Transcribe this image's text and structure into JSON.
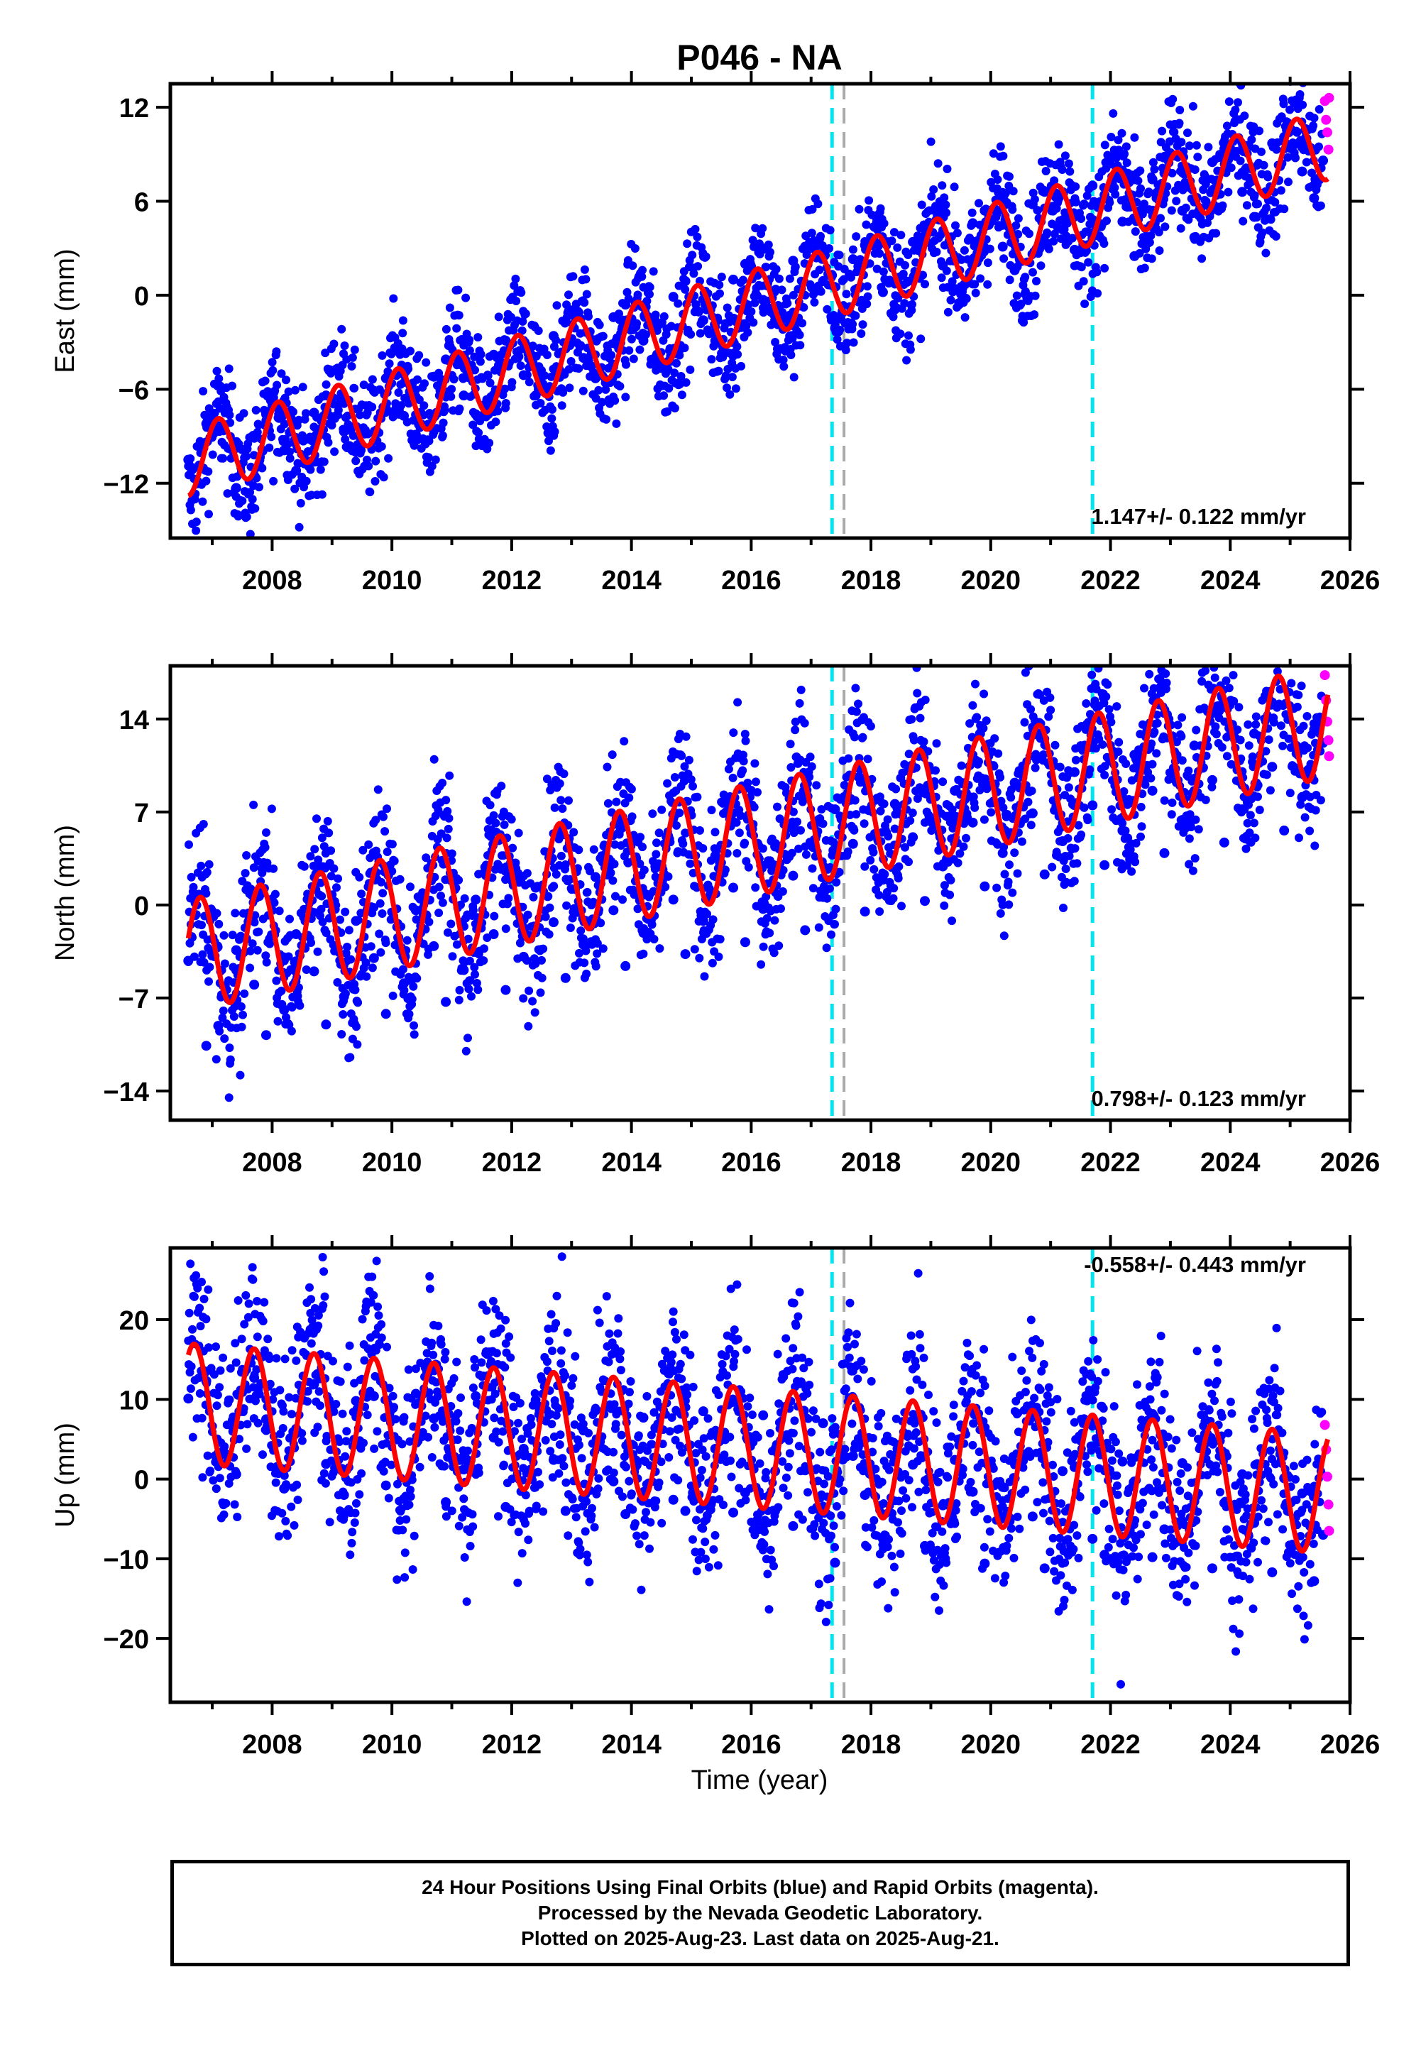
{
  "title": "P046 - NA",
  "xlabel": "Time (year)",
  "footer": {
    "line1": "24 Hour Positions Using Final Orbits (blue) and Rapid Orbits (magenta).",
    "line2": "Processed by the Nevada Geodetic Laboratory.",
    "line3": "Plotted on 2025-Aug-23. Last data on 2025-Aug-21."
  },
  "colors": {
    "final_orbits": "#0000ff",
    "rapid_orbits": "#ff00ff",
    "model_fit": "#ff0000",
    "event_cyan": "#00e5ee",
    "event_gray": "#aaaaaa"
  },
  "chart_data": [
    {
      "type": "scatter",
      "ylabel": "East (mm)",
      "rate_label": "1.147+/- 0.122 mm/yr",
      "xlim": [
        2006.3,
        2026.0
      ],
      "ylim": [
        -15.5,
        13.5
      ],
      "yticks": [
        12,
        6,
        0,
        -6,
        -12
      ],
      "xticks": [
        2008,
        2010,
        2012,
        2014,
        2016,
        2018,
        2020,
        2022,
        2024,
        2026
      ],
      "grid": false,
      "event_lines": [
        {
          "x": 2017.35,
          "style": "cyan-dashed"
        },
        {
          "x": 2017.55,
          "style": "gray-dashed"
        },
        {
          "x": 2021.7,
          "style": "cyan-dashed"
        }
      ],
      "model": {
        "start": 2006.6,
        "end": 2025.63,
        "y_start": -10.6,
        "y_end": 9.6,
        "amplitude": 2.2,
        "phase": 2006.85,
        "period": 1.0
      },
      "series": [
        {
          "name": "Final Orbits",
          "color": "#0000ff",
          "x": [
            2006.6,
            2006.9,
            2007.1,
            2007.4,
            2007.7,
            2007.9,
            2008.2,
            2008.4,
            2008.7,
            2008.9,
            2009.2,
            2009.4,
            2009.7,
            2009.9,
            2010.2,
            2010.4,
            2010.7,
            2010.9,
            2011.2,
            2011.4,
            2011.7,
            2011.9,
            2012.2,
            2012.4,
            2012.7,
            2012.9,
            2013.2,
            2013.4,
            2013.7,
            2013.9,
            2014.2,
            2014.4,
            2014.7,
            2014.9,
            2015.2,
            2015.4,
            2015.7,
            2015.9,
            2016.2,
            2016.4,
            2016.7,
            2016.9,
            2017.2,
            2017.4,
            2017.7,
            2017.9,
            2018.2,
            2018.4,
            2018.7,
            2018.9,
            2019.2,
            2019.4,
            2019.7,
            2019.9,
            2020.2,
            2020.4,
            2020.7,
            2020.9,
            2021.2,
            2021.4,
            2021.7,
            2021.9,
            2022.2,
            2022.4,
            2022.7,
            2022.9,
            2023.2,
            2023.4,
            2023.7,
            2023.9,
            2024.2,
            2024.4,
            2024.7,
            2024.9,
            2025.2,
            2025.4,
            2025.55
          ],
          "y": [
            -10.5,
            -8.2,
            -8.6,
            -12.3,
            -9.1,
            -7.6,
            -9.9,
            -11.2,
            -7.5,
            -6.4,
            -8.7,
            -10.0,
            -6.1,
            -5.3,
            -7.7,
            -8.9,
            -5.2,
            -4.1,
            -6.4,
            -7.6,
            -3.8,
            -2.9,
            -5.1,
            -6.4,
            -2.6,
            -1.7,
            -4.0,
            -5.3,
            -1.4,
            -0.6,
            -2.9,
            -4.2,
            -0.1,
            0.9,
            -1.6,
            -2.9,
            1.0,
            2.0,
            -0.3,
            -1.6,
            2.2,
            3.1,
            0.9,
            -2.1,
            2.3,
            3.2,
            0.2,
            -0.9,
            3.4,
            4.3,
            1.9,
            0.4,
            4.6,
            5.4,
            3.1,
            1.6,
            5.8,
            6.6,
            4.2,
            2.9,
            7.0,
            6.4,
            4.7,
            2.5,
            7.4,
            7.8,
            5.4,
            3.7,
            8.5,
            9.0,
            6.6,
            5.0,
            9.7,
            10.1,
            7.9,
            6.2,
            8.6
          ]
        },
        {
          "name": "Rapid Orbits",
          "color": "#ff00ff",
          "x": [
            2025.58,
            2025.6,
            2025.62,
            2025.64,
            2025.65
          ],
          "y": [
            12.4,
            11.2,
            10.4,
            9.3,
            12.6
          ]
        }
      ]
    },
    {
      "type": "scatter",
      "ylabel": "North (mm)",
      "rate_label": "0.798+/- 0.123 mm/yr",
      "xlim": [
        2006.3,
        2026.0
      ],
      "ylim": [
        -16.2,
        18.0
      ],
      "yticks": [
        14,
        7,
        0,
        -7,
        -14
      ],
      "xticks": [
        2008,
        2010,
        2012,
        2014,
        2016,
        2018,
        2020,
        2022,
        2024,
        2026
      ],
      "grid": false,
      "event_lines": [
        {
          "x": 2017.35,
          "style": "cyan-dashed"
        },
        {
          "x": 2017.55,
          "style": "gray-dashed"
        },
        {
          "x": 2021.7,
          "style": "cyan-dashed"
        }
      ],
      "model": {
        "start": 2006.6,
        "end": 2025.63,
        "y_start": -3.8,
        "y_end": 13.8,
        "amplitude": 4.2,
        "phase": 2006.55,
        "period": 1.0
      },
      "series": [
        {
          "name": "Final Orbits",
          "color": "#0000ff",
          "x": [
            2006.6,
            2006.9,
            2007.1,
            2007.4,
            2007.7,
            2007.9,
            2008.2,
            2008.4,
            2008.7,
            2008.9,
            2009.2,
            2009.4,
            2009.7,
            2009.9,
            2010.2,
            2010.4,
            2010.7,
            2010.9,
            2011.2,
            2011.4,
            2011.7,
            2011.9,
            2012.2,
            2012.4,
            2012.7,
            2012.9,
            2013.2,
            2013.4,
            2013.7,
            2013.9,
            2014.2,
            2014.4,
            2014.7,
            2014.9,
            2015.2,
            2015.4,
            2015.7,
            2015.9,
            2016.2,
            2016.4,
            2016.7,
            2016.9,
            2017.2,
            2017.4,
            2017.7,
            2017.9,
            2018.2,
            2018.4,
            2018.7,
            2018.9,
            2019.2,
            2019.4,
            2019.7,
            2019.9,
            2020.2,
            2020.4,
            2020.7,
            2020.9,
            2021.2,
            2021.4,
            2021.7,
            2021.9,
            2022.2,
            2022.4,
            2022.7,
            2022.9,
            2023.2,
            2023.4,
            2023.7,
            2023.9,
            2024.2,
            2024.4,
            2024.7,
            2024.9,
            2025.2,
            2025.4,
            2025.55
          ],
          "y": [
            -4.2,
            -10.6,
            -9.1,
            -3.4,
            -6.0,
            -9.8,
            -7.9,
            -2.2,
            -5.0,
            -9.0,
            -6.9,
            -1.2,
            -4.0,
            -8.2,
            -5.9,
            -0.4,
            -3.1,
            -7.3,
            -4.9,
            0.4,
            -2.2,
            -6.4,
            -3.9,
            1.3,
            -1.3,
            -5.5,
            -3.0,
            2.1,
            -0.4,
            -4.6,
            -2.1,
            2.9,
            0.4,
            -3.7,
            -1.2,
            3.7,
            1.3,
            -2.8,
            -0.3,
            4.4,
            2.2,
            -1.9,
            0.6,
            7.2,
            4.6,
            -0.5,
            1.9,
            7.6,
            5.1,
            0.3,
            2.9,
            8.6,
            6.2,
            1.4,
            3.9,
            9.2,
            6.9,
            2.3,
            4.8,
            10.0,
            7.5,
            3.0,
            5.6,
            11.3,
            8.6,
            3.9,
            6.4,
            12.0,
            9.4,
            4.7,
            7.2,
            12.9,
            10.4,
            5.6,
            8.1,
            13.2,
            12.2
          ]
        },
        {
          "name": "Rapid Orbits",
          "color": "#ff00ff",
          "x": [
            2025.58,
            2025.6,
            2025.62,
            2025.64,
            2025.65
          ],
          "y": [
            17.3,
            15.4,
            13.8,
            12.4,
            11.2
          ]
        }
      ]
    },
    {
      "type": "scatter",
      "ylabel": "Up (mm)",
      "rate_label": "-0.558+/- 0.443 mm/yr",
      "xlim": [
        2006.3,
        2026.0
      ],
      "ylim": [
        -28.0,
        29.0
      ],
      "yticks": [
        20,
        10,
        0,
        -10,
        -20
      ],
      "xticks": [
        2008,
        2010,
        2012,
        2014,
        2016,
        2018,
        2020,
        2022,
        2024,
        2026
      ],
      "grid": false,
      "event_lines": [
        {
          "x": 2017.35,
          "style": "cyan-dashed"
        },
        {
          "x": 2017.55,
          "style": "gray-dashed"
        },
        {
          "x": 2021.7,
          "style": "cyan-dashed"
        }
      ],
      "model": {
        "start": 2006.6,
        "end": 2025.63,
        "y_start": 9.5,
        "y_end": -1.8,
        "amplitude": 7.5,
        "phase": 2006.45,
        "period": 1.0
      },
      "series": [
        {
          "name": "Final Orbits",
          "color": "#0000ff",
          "x": [
            2006.6,
            2006.9,
            2007.1,
            2007.4,
            2007.7,
            2007.9,
            2008.2,
            2008.4,
            2008.7,
            2008.9,
            2009.2,
            2009.4,
            2009.7,
            2009.9,
            2010.2,
            2010.4,
            2010.7,
            2010.9,
            2011.2,
            2011.4,
            2011.7,
            2011.9,
            2012.2,
            2012.4,
            2012.7,
            2012.9,
            2013.2,
            2013.4,
            2013.7,
            2013.9,
            2014.2,
            2014.4,
            2014.7,
            2014.9,
            2015.2,
            2015.4,
            2015.7,
            2015.9,
            2016.2,
            2016.4,
            2016.7,
            2016.9,
            2017.2,
            2017.4,
            2017.7,
            2017.9,
            2018.2,
            2018.4,
            2018.7,
            2018.9,
            2019.2,
            2019.4,
            2019.7,
            2019.9,
            2020.2,
            2020.4,
            2020.7,
            2020.9,
            2021.2,
            2021.4,
            2021.7,
            2021.9,
            2022.2,
            2022.4,
            2022.7,
            2022.9,
            2023.2,
            2023.4,
            2023.7,
            2023.9,
            2024.2,
            2024.4,
            2024.7,
            2024.9,
            2025.2,
            2025.4,
            2025.55
          ],
          "y": [
            10.1,
            12.3,
            3.2,
            0.6,
            12.7,
            7.5,
            -1.2,
            6.3,
            11.9,
            1.9,
            -2.0,
            9.8,
            10.4,
            -0.8,
            -2.5,
            10.7,
            7.6,
            -2.9,
            1.2,
            10.4,
            5.2,
            -3.5,
            3.8,
            9.9,
            2.4,
            -4.0,
            6.1,
            8.6,
            -0.3,
            -4.4,
            7.7,
            6.4,
            -2.6,
            -4.0,
            8.5,
            3.8,
            -4.2,
            -1.7,
            8.0,
            1.0,
            -5.9,
            1.1,
            7.0,
            -10.5,
            2.9,
            -2.0,
            -7.5,
            2.6,
            1.8,
            -8.4,
            -3.3,
            2.4,
            -1.6,
            -10.6,
            -1.0,
            2.0,
            -4.7,
            -11.2,
            1.0,
            1.5,
            -7.5,
            -9.5,
            2.2,
            -0.3,
            -9.8,
            -6.3,
            2.0,
            -2.8,
            -11.2,
            -3.0,
            0.6,
            -5.5,
            -11.7,
            0.1,
            -1.8,
            -12.8,
            -7.0
          ]
        },
        {
          "name": "Rapid Orbits",
          "color": "#ff00ff",
          "x": [
            2025.58,
            2025.6,
            2025.62,
            2025.64,
            2025.65
          ],
          "y": [
            6.8,
            3.7,
            0.3,
            -3.2,
            -6.5
          ]
        }
      ]
    }
  ]
}
